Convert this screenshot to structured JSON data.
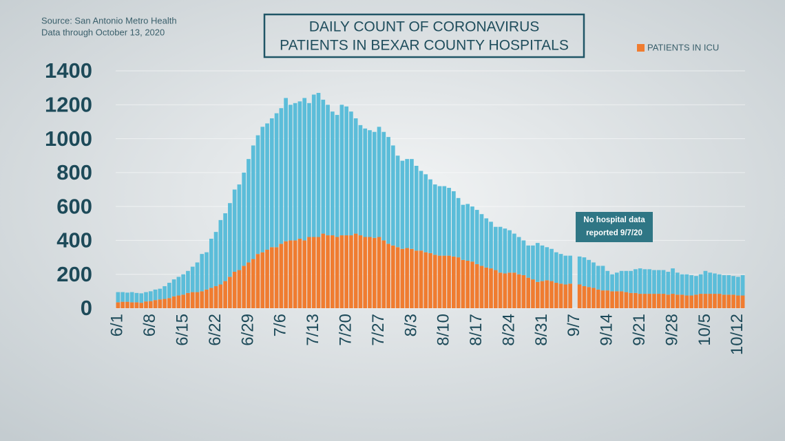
{
  "chart_data": {
    "type": "bar",
    "stacked": true,
    "source": [
      "Source: San Antonio Metro Health",
      "Data through October 13, 2020"
    ],
    "title": [
      "DAILY COUNT OF CORONAVIRUS",
      "PATIENTS IN BEXAR COUNTY HOSPITALS"
    ],
    "annotation": [
      "No hospital data",
      "reported 9/7/20"
    ],
    "categories": [
      "6/1",
      null,
      null,
      null,
      null,
      null,
      null,
      "6/8",
      null,
      null,
      null,
      null,
      null,
      null,
      "6/15",
      null,
      null,
      null,
      null,
      null,
      null,
      "6/22",
      null,
      null,
      null,
      null,
      null,
      null,
      "6/29",
      null,
      null,
      null,
      null,
      null,
      null,
      "7/6",
      null,
      null,
      null,
      null,
      null,
      null,
      "7/13",
      null,
      null,
      null,
      null,
      null,
      null,
      "7/20",
      null,
      null,
      null,
      null,
      null,
      null,
      "7/27",
      null,
      null,
      null,
      null,
      null,
      null,
      "8/3",
      null,
      null,
      null,
      null,
      null,
      null,
      "8/10",
      null,
      null,
      null,
      null,
      null,
      null,
      "8/17",
      null,
      null,
      null,
      null,
      null,
      null,
      "8/24",
      null,
      null,
      null,
      null,
      null,
      null,
      "8/31",
      null,
      null,
      null,
      null,
      null,
      null,
      "9/7",
      null,
      null,
      null,
      null,
      null,
      null,
      "9/14",
      null,
      null,
      null,
      null,
      null,
      null,
      "9/21",
      null,
      null,
      null,
      null,
      null,
      null,
      "9/28",
      null,
      null,
      null,
      null,
      null,
      null,
      "10/5",
      null,
      null,
      null,
      null,
      null,
      null,
      "10/12",
      null
    ],
    "series": [
      {
        "name": "PATIENTS IN ICU",
        "color": "#f07c30",
        "values": [
          35,
          38,
          38,
          35,
          35,
          32,
          40,
          42,
          48,
          52,
          55,
          60,
          70,
          75,
          80,
          90,
          95,
          95,
          100,
          110,
          120,
          130,
          140,
          160,
          185,
          215,
          225,
          250,
          270,
          290,
          320,
          330,
          345,
          360,
          360,
          380,
          395,
          400,
          400,
          410,
          400,
          420,
          420,
          420,
          440,
          430,
          430,
          420,
          430,
          430,
          430,
          440,
          430,
          420,
          420,
          415,
          420,
          400,
          380,
          370,
          360,
          350,
          355,
          350,
          340,
          340,
          330,
          325,
          315,
          310,
          310,
          310,
          305,
          300,
          285,
          280,
          275,
          260,
          250,
          240,
          235,
          225,
          210,
          205,
          210,
          210,
          200,
          195,
          180,
          170,
          155,
          160,
          165,
          160,
          150,
          145,
          140,
          145,
          null,
          140,
          130,
          125,
          120,
          110,
          105,
          105,
          100,
          100,
          100,
          95,
          90,
          90,
          85,
          85,
          85,
          85,
          85,
          85,
          80,
          85,
          80,
          80,
          75,
          75,
          80,
          85,
          85,
          85,
          85,
          85,
          80,
          80,
          80,
          75,
          75
        ]
      },
      {
        "color": "#5bbdd9",
        "values": [
          60,
          57,
          54,
          60,
          55,
          56,
          55,
          58,
          62,
          63,
          75,
          90,
          100,
          110,
          120,
          130,
          150,
          175,
          220,
          220,
          290,
          320,
          380,
          400,
          435,
          485,
          505,
          550,
          610,
          670,
          700,
          740,
          745,
          760,
          790,
          800,
          845,
          800,
          810,
          810,
          840,
          790,
          840,
          850,
          790,
          770,
          730,
          720,
          770,
          760,
          730,
          680,
          650,
          640,
          630,
          625,
          650,
          640,
          630,
          590,
          540,
          520,
          525,
          530,
          500,
          470,
          460,
          435,
          415,
          410,
          410,
          400,
          385,
          350,
          325,
          335,
          325,
          320,
          305,
          290,
          275,
          255,
          270,
          265,
          250,
          230,
          220,
          205,
          190,
          200,
          230,
          210,
          195,
          190,
          180,
          175,
          170,
          165,
          null,
          165,
          170,
          160,
          150,
          140,
          145,
          115,
          100,
          110,
          120,
          125,
          130,
          140,
          150,
          145,
          145,
          140,
          140,
          140,
          135,
          150,
          130,
          120,
          125,
          120,
          110,
          115,
          135,
          125,
          120,
          115,
          115,
          115,
          110,
          110,
          120
        ]
      }
    ],
    "ylim": [
      0,
      1400
    ],
    "yticks": [
      0,
      200,
      400,
      600,
      800,
      1000,
      1200,
      1400
    ],
    "grid": true,
    "legend": "top-right"
  }
}
